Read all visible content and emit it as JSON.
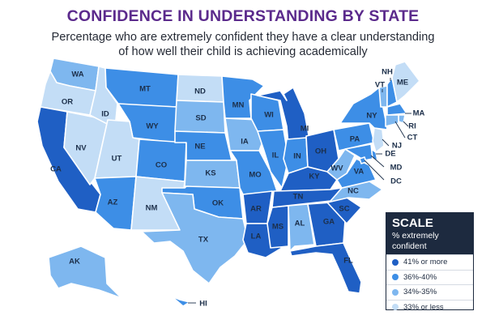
{
  "header": {
    "title": "CONFIDENCE IN UNDERSTANDING BY STATE",
    "subtitle_line1": "Percentage who are extremely confident they have a clear understanding",
    "subtitle_line2": "of how well their child is achieving academically"
  },
  "legend": {
    "title": "SCALE",
    "subtitle_line1": "% extremely",
    "subtitle_line2": "confident",
    "items": [
      {
        "label": "41% or more",
        "color": "#1f5fc4"
      },
      {
        "label": "36%-40%",
        "color": "#3d8ee6"
      },
      {
        "label": "34%-35%",
        "color": "#7eb7ef"
      },
      {
        "label": "33% or less",
        "color": "#c3ddf6"
      }
    ]
  },
  "highlight": {
    "state": "TN",
    "color": "#e0405a"
  },
  "states": {
    "WA": "34%-35%",
    "OR": "33% or less",
    "CA": "41% or more",
    "NV": "33% or less",
    "ID": "33% or less",
    "MT": "36%-40%",
    "WY": "36%-40%",
    "UT": "33% or less",
    "AZ": "36%-40%",
    "NM": "33% or less",
    "CO": "36%-40%",
    "ND": "33% or less",
    "SD": "34%-35%",
    "NE": "36%-40%",
    "KS": "34%-35%",
    "OK": "36%-40%",
    "TX": "34%-35%",
    "MN": "36%-40%",
    "IA": "34%-35%",
    "MO": "36%-40%",
    "AR": "41% or more",
    "LA": "41% or more",
    "WI": "36%-40%",
    "IL": "36%-40%",
    "MI": "41% or more",
    "IN": "36%-40%",
    "OH": "41% or more",
    "KY": "41% or more",
    "TN": "41% or more",
    "MS": "41% or more",
    "AL": "34%-35%",
    "GA": "41% or more",
    "FL": "41% or more",
    "SC": "41% or more",
    "NC": "34%-35%",
    "VA": "36%-40%",
    "WV": "34%-35%",
    "PA": "36%-40%",
    "NY": "36%-40%",
    "VT": "34%-35%",
    "NH": "36%-40%",
    "ME": "33% or less",
    "MA": "36%-40%",
    "RI": "34%-35%",
    "CT": "34%-35%",
    "NJ": "33% or less",
    "DE": "36%-40%",
    "MD": "36%-40%",
    "DC": "36%-40%",
    "AK": "34%-35%",
    "HI": "36%-40%"
  },
  "labels": {
    "WA": "WA",
    "OR": "OR",
    "CA": "CA",
    "NV": "NV",
    "ID": "ID",
    "MT": "MT",
    "WY": "WY",
    "UT": "UT",
    "AZ": "AZ",
    "NM": "NM",
    "CO": "CO",
    "ND": "ND",
    "SD": "SD",
    "NE": "NE",
    "KS": "KS",
    "OK": "OK",
    "TX": "TX",
    "MN": "MN",
    "IA": "IA",
    "MO": "MO",
    "AR": "AR",
    "LA": "LA",
    "WI": "WI",
    "IL": "IL",
    "MI": "MI",
    "IN": "IN",
    "OH": "OH",
    "KY": "KY",
    "TN": "TN",
    "MS": "MS",
    "AL": "AL",
    "GA": "GA",
    "FL": "FL",
    "SC": "SC",
    "NC": "NC",
    "VA": "VA",
    "WV": "WV",
    "PA": "PA",
    "NY": "NY",
    "VT": "VT",
    "NH": "NH",
    "ME": "ME",
    "MA": "MA",
    "RI": "RI",
    "CT": "CT",
    "NJ": "NJ",
    "DE": "DE",
    "MD": "MD",
    "DC": "DC",
    "AK": "AK",
    "HI": "HI"
  }
}
